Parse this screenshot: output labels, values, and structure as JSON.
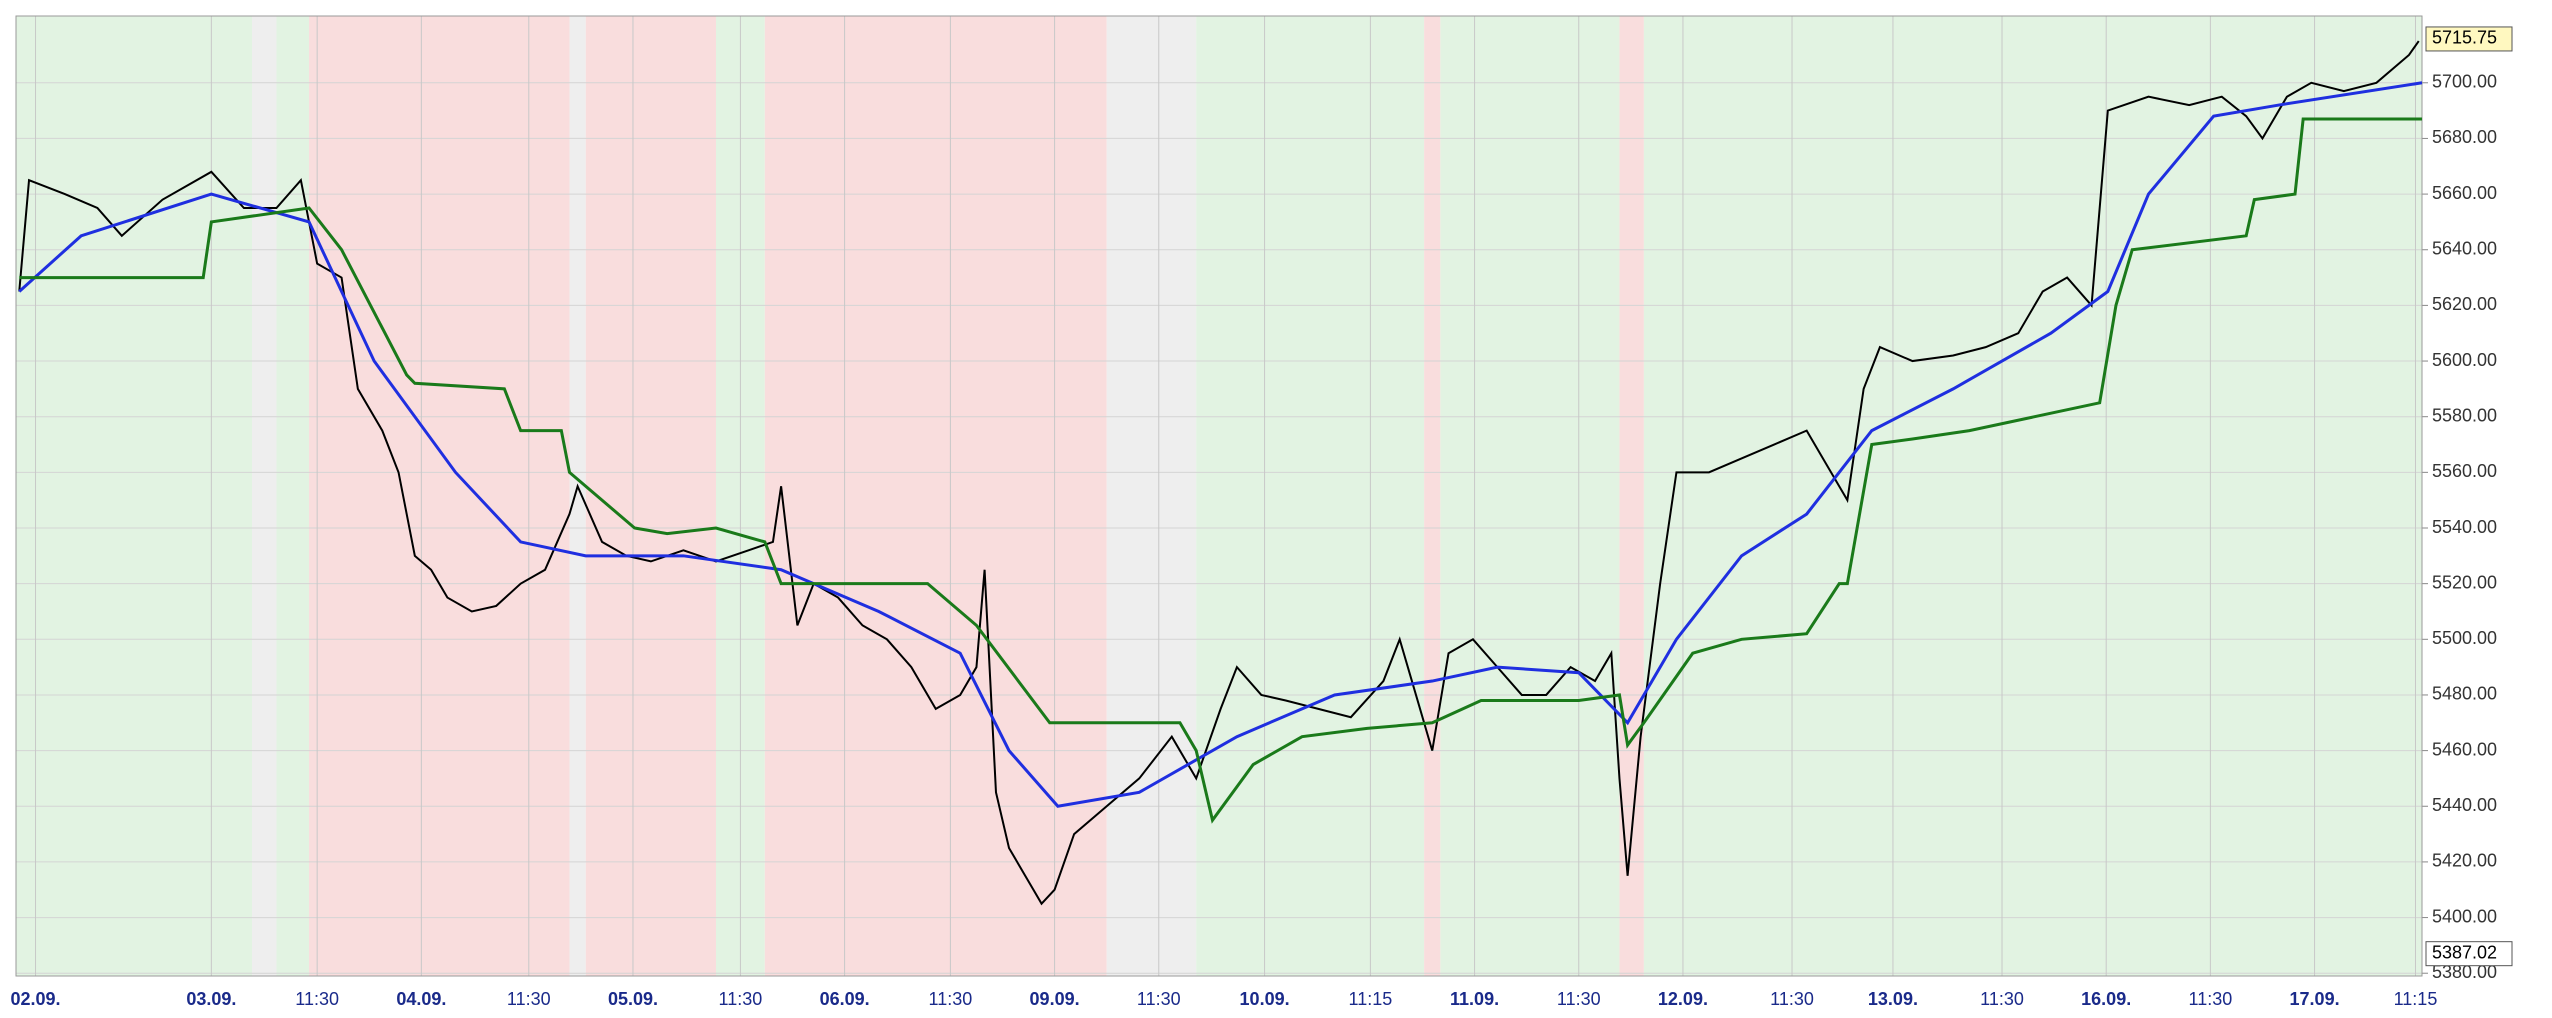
{
  "chart_data": {
    "type": "line",
    "xlim": [
      0,
      1478
    ],
    "ylim": [
      5379,
      5724
    ],
    "yticks": [
      {
        "value": 5380,
        "label": "5380.00"
      },
      {
        "value": 5400,
        "label": "5400.00"
      },
      {
        "value": 5420,
        "label": "5420.00"
      },
      {
        "value": 5440,
        "label": "5440.00"
      },
      {
        "value": 5460,
        "label": "5460.00"
      },
      {
        "value": 5480,
        "label": "5480.00"
      },
      {
        "value": 5500,
        "label": "5500.00"
      },
      {
        "value": 5520,
        "label": "5520.00"
      },
      {
        "value": 5540,
        "label": "5540.00"
      },
      {
        "value": 5560,
        "label": "5560.00"
      },
      {
        "value": 5580,
        "label": "5580.00"
      },
      {
        "value": 5600,
        "label": "5600.00"
      },
      {
        "value": 5620,
        "label": "5620.00"
      },
      {
        "value": 5640,
        "label": "5640.00"
      },
      {
        "value": 5660,
        "label": "5660.00"
      },
      {
        "value": 5680,
        "label": "5680.00"
      },
      {
        "value": 5700,
        "label": "5700.00"
      }
    ],
    "xticks": [
      {
        "value": 12,
        "label": "02.09."
      },
      {
        "value": 120,
        "label": "03.09."
      },
      {
        "value": 185,
        "label": "11:30"
      },
      {
        "value": 249,
        "label": "04.09."
      },
      {
        "value": 315,
        "label": "11:30"
      },
      {
        "value": 379,
        "label": "05.09."
      },
      {
        "value": 445,
        "label": "11:30"
      },
      {
        "value": 509,
        "label": "06.09."
      },
      {
        "value": 574,
        "label": "11:30"
      },
      {
        "value": 638,
        "label": "09.09."
      },
      {
        "value": 702,
        "label": "11:30"
      },
      {
        "value": 767,
        "label": "10.09."
      },
      {
        "value": 832,
        "label": "11:15"
      },
      {
        "value": 896,
        "label": "11.09."
      },
      {
        "value": 960,
        "label": "11:30"
      },
      {
        "value": 1024,
        "label": "12.09."
      },
      {
        "value": 1091,
        "label": "11:30"
      },
      {
        "value": 1153,
        "label": "13.09."
      },
      {
        "value": 1220,
        "label": "11:30"
      },
      {
        "value": 1284,
        "label": "16.09."
      },
      {
        "value": 1348,
        "label": "11:30"
      },
      {
        "value": 1412,
        "label": "17.09."
      },
      {
        "value": 1474,
        "label": "11:15"
      }
    ],
    "grid": true,
    "bands": [
      {
        "from": 0,
        "to": 145,
        "color": "#e2f3e2"
      },
      {
        "from": 145,
        "to": 160,
        "color": "#eeeeee"
      },
      {
        "from": 160,
        "to": 180,
        "color": "#e2f3e2"
      },
      {
        "from": 180,
        "to": 340,
        "color": "#f9dddd"
      },
      {
        "from": 340,
        "to": 350,
        "color": "#eeeeee"
      },
      {
        "from": 350,
        "to": 430,
        "color": "#f9dddd"
      },
      {
        "from": 430,
        "to": 460,
        "color": "#e2f3e2"
      },
      {
        "from": 460,
        "to": 670,
        "color": "#f9dddd"
      },
      {
        "from": 670,
        "to": 725,
        "color": "#eeeeee"
      },
      {
        "from": 725,
        "to": 865,
        "color": "#e2f3e2"
      },
      {
        "from": 865,
        "to": 875,
        "color": "#f9dddd"
      },
      {
        "from": 875,
        "to": 985,
        "color": "#e2f3e2"
      },
      {
        "from": 985,
        "to": 1000,
        "color": "#f9dddd"
      },
      {
        "from": 1000,
        "to": 1478,
        "color": "#e2f3e2"
      }
    ],
    "series": [
      {
        "color": "#000000",
        "x": [
          2,
          8,
          30,
          50,
          65,
          90,
          120,
          140,
          160,
          175,
          185,
          200,
          210,
          225,
          235,
          245,
          255,
          265,
          280,
          295,
          310,
          325,
          340,
          345,
          360,
          375,
          390,
          410,
          430,
          450,
          465,
          470,
          480,
          490,
          505,
          520,
          535,
          550,
          565,
          580,
          590,
          595,
          602,
          610,
          620,
          630,
          638,
          650,
          670,
          690,
          710,
          725,
          740,
          750,
          765,
          780,
          800,
          820,
          840,
          850,
          860,
          870,
          880,
          895,
          910,
          925,
          940,
          955,
          970,
          980,
          985,
          990,
          998,
          1010,
          1020,
          1040,
          1060,
          1080,
          1100,
          1115,
          1125,
          1135,
          1145,
          1165,
          1190,
          1210,
          1230,
          1245,
          1260,
          1275,
          1285,
          1310,
          1335,
          1355,
          1370,
          1380,
          1395,
          1410,
          1430,
          1450,
          1470,
          1476
        ],
        "values": [
          5625,
          5665,
          5660,
          5655,
          5645,
          5658,
          5668,
          5655,
          5655,
          5665,
          5635,
          5630,
          5590,
          5575,
          5560,
          5530,
          5525,
          5515,
          5510,
          5512,
          5520,
          5525,
          5545,
          5555,
          5535,
          5530,
          5528,
          5532,
          5528,
          5532,
          5535,
          5555,
          5505,
          5520,
          5515,
          5505,
          5500,
          5490,
          5475,
          5480,
          5490,
          5525,
          5445,
          5425,
          5415,
          5405,
          5410,
          5430,
          5440,
          5450,
          5465,
          5450,
          5475,
          5490,
          5480,
          5478,
          5475,
          5472,
          5485,
          5500,
          5480,
          5460,
          5495,
          5500,
          5490,
          5480,
          5480,
          5490,
          5485,
          5495,
          5450,
          5415,
          5465,
          5520,
          5560,
          5560,
          5565,
          5570,
          5575,
          5560,
          5550,
          5590,
          5605,
          5600,
          5602,
          5605,
          5610,
          5625,
          5630,
          5620,
          5690,
          5695,
          5692,
          5695,
          5688,
          5680,
          5695,
          5700,
          5697,
          5700,
          5710,
          5715
        ]
      },
      {
        "color": "#1f2fe0",
        "x": [
          2,
          40,
          120,
          180,
          220,
          270,
          310,
          350,
          410,
          470,
          530,
          580,
          610,
          640,
          690,
          750,
          810,
          870,
          910,
          960,
          990,
          1020,
          1060,
          1100,
          1140,
          1190,
          1250,
          1285,
          1310,
          1350,
          1390,
          1478
        ],
        "values": [
          5625,
          5645,
          5660,
          5650,
          5600,
          5560,
          5535,
          5530,
          5530,
          5525,
          5510,
          5495,
          5460,
          5440,
          5445,
          5465,
          5480,
          5485,
          5490,
          5488,
          5470,
          5500,
          5530,
          5545,
          5575,
          5590,
          5610,
          5625,
          5660,
          5688,
          5692,
          5700
        ]
      },
      {
        "color": "#1a7a1a",
        "x": [
          2,
          115,
          120,
          180,
          200,
          240,
          245,
          300,
          310,
          335,
          340,
          380,
          400,
          430,
          460,
          470,
          560,
          590,
          635,
          715,
          725,
          735,
          760,
          790,
          830,
          870,
          900,
          960,
          985,
          990,
          1000,
          1030,
          1060,
          1100,
          1120,
          1125,
          1140,
          1165,
          1200,
          1240,
          1280,
          1290,
          1300,
          1370,
          1375,
          1400,
          1405,
          1478
        ],
        "values": [
          5630,
          5630,
          5650,
          5655,
          5640,
          5595,
          5592,
          5590,
          5575,
          5575,
          5560,
          5540,
          5538,
          5540,
          5535,
          5520,
          5520,
          5505,
          5470,
          5470,
          5460,
          5435,
          5455,
          5465,
          5468,
          5470,
          5478,
          5478,
          5480,
          5462,
          5470,
          5495,
          5500,
          5502,
          5520,
          5520,
          5570,
          5572,
          5575,
          5580,
          5585,
          5620,
          5640,
          5645,
          5658,
          5660,
          5687,
          5687
        ]
      }
    ],
    "last_price": 5715.75,
    "low_price": 5387.02
  }
}
